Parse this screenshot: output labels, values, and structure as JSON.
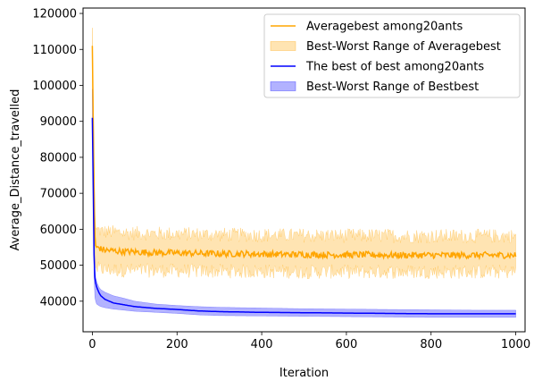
{
  "chart_data": {
    "type": "line",
    "xlabel": "Iteration",
    "ylabel": "Average_Distance_travelled",
    "xlim": [
      -22,
      1022
    ],
    "ylim": [
      31500,
      121500
    ],
    "xticks": [
      0,
      200,
      400,
      600,
      800,
      1000
    ],
    "yticks": [
      40000,
      50000,
      60000,
      70000,
      80000,
      90000,
      100000,
      110000,
      120000
    ],
    "xtick_labels": [
      "0",
      "200",
      "400",
      "600",
      "800",
      "1000"
    ],
    "ytick_labels": [
      "40000",
      "50000",
      "60000",
      "70000",
      "80000",
      "90000",
      "100000",
      "110000",
      "120000"
    ],
    "grid": false,
    "legend_position": "top-right",
    "legend": [
      {
        "label": "Averagebest among20ants",
        "kind": "line",
        "color": "#ffa500"
      },
      {
        "label": "Best-Worst Range of Averagebest",
        "kind": "band",
        "color": "#ffa500"
      },
      {
        "label": "The best of best among20ants",
        "kind": "line",
        "color": "#0000ff"
      },
      {
        "label": "Best-Worst Range of Bestbest",
        "kind": "band",
        "color": "#0000ff"
      }
    ],
    "series": [
      {
        "name": "Averagebest among20ants",
        "kind": "line",
        "color": "#ffa500",
        "x": [
          0,
          1,
          2,
          3,
          4,
          5,
          6,
          8,
          10,
          15,
          20,
          30,
          50,
          75,
          100,
          150,
          200,
          250,
          300,
          350,
          400,
          450,
          500,
          550,
          600,
          650,
          700,
          750,
          800,
          850,
          900,
          950,
          1000
        ],
        "y": [
          111000,
          101000,
          90000,
          82000,
          72000,
          64000,
          58000,
          55500,
          55000,
          55000,
          54500,
          54200,
          54000,
          53800,
          53700,
          53500,
          53400,
          53300,
          53200,
          53200,
          53100,
          53000,
          53000,
          52900,
          52900,
          52900,
          52800,
          52800,
          52800,
          52800,
          52800,
          52800,
          52800
        ]
      },
      {
        "name": "Best-Worst Range of Averagebest",
        "kind": "band",
        "color": "#ffa500",
        "x": [
          0,
          1,
          2,
          3,
          4,
          5,
          6,
          8,
          10,
          15,
          20,
          30,
          50,
          75,
          100,
          150,
          200,
          250,
          300,
          350,
          400,
          450,
          500,
          550,
          600,
          650,
          700,
          750,
          800,
          850,
          900,
          950,
          1000
        ],
        "low": [
          101000,
          92000,
          82000,
          75000,
          67000,
          58000,
          52000,
          49500,
          49000,
          49000,
          49000,
          48800,
          48700,
          48600,
          48600,
          48500,
          48500,
          48400,
          48400,
          48300,
          48300,
          48300,
          48200,
          48200,
          48200,
          48200,
          48200,
          48200,
          48200,
          48200,
          48200,
          48200,
          48200
        ],
        "high": [
          116000,
          108000,
          97000,
          89000,
          79000,
          70000,
          64000,
          60500,
          60000,
          59800,
          59500,
          59300,
          59200,
          59000,
          58900,
          58800,
          58700,
          58600,
          58500,
          58400,
          58400,
          58300,
          58300,
          58200,
          58200,
          58200,
          58200,
          58100,
          58100,
          58100,
          58100,
          58100,
          58100
        ]
      },
      {
        "name": "The best of best among20ants",
        "kind": "line",
        "color": "#0000ff",
        "x": [
          0,
          1,
          2,
          3,
          4,
          5,
          6,
          8,
          10,
          15,
          20,
          30,
          40,
          50,
          75,
          100,
          150,
          200,
          250,
          300,
          400,
          500,
          600,
          700,
          800,
          900,
          1000
        ],
        "y": [
          91000,
          85000,
          72000,
          60000,
          53000,
          49000,
          46500,
          45000,
          44000,
          42500,
          41500,
          40500,
          40000,
          39500,
          39000,
          38500,
          38000,
          37700,
          37300,
          37100,
          36900,
          36800,
          36700,
          36600,
          36500,
          36500,
          36500
        ]
      },
      {
        "name": "Best-Worst Range of Bestbest",
        "kind": "band",
        "color": "#0000ff",
        "x": [
          0,
          1,
          2,
          3,
          4,
          5,
          6,
          8,
          10,
          15,
          20,
          30,
          40,
          50,
          75,
          100,
          150,
          200,
          250,
          300,
          400,
          500,
          600,
          700,
          800,
          900,
          1000
        ],
        "low": [
          88000,
          80000,
          66000,
          54000,
          47000,
          43000,
          41000,
          40000,
          39200,
          38800,
          38500,
          38200,
          38000,
          37800,
          37500,
          37200,
          36900,
          36600,
          36200,
          36000,
          35900,
          35800,
          35700,
          35600,
          35500,
          35500,
          35500
        ],
        "high": [
          99000,
          92000,
          80000,
          68000,
          59000,
          52000,
          48500,
          46500,
          45500,
          44000,
          43200,
          42500,
          42000,
          41500,
          40800,
          40000,
          39200,
          38800,
          38500,
          38300,
          38100,
          37900,
          37800,
          37700,
          37600,
          37500,
          37500
        ]
      }
    ]
  }
}
